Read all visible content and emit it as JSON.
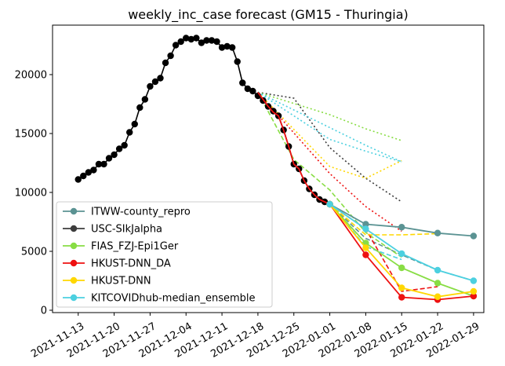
{
  "chart_data": {
    "type": "line",
    "title": "weekly_inc_case forecast (GM15 - Thuringia)",
    "xlabel": "",
    "ylabel": "",
    "x_start_date": "2021-11-08",
    "xlim": [
      0,
      84
    ],
    "ylim": [
      -200,
      24200
    ],
    "grid": false,
    "legend_position": "lower-left",
    "x_ticks": [
      {
        "x": 5,
        "label": "2021-11-13"
      },
      {
        "x": 12,
        "label": "2021-11-20"
      },
      {
        "x": 19,
        "label": "2021-11-27"
      },
      {
        "x": 26,
        "label": "2021-12-04"
      },
      {
        "x": 33,
        "label": "2021-12-11"
      },
      {
        "x": 40,
        "label": "2021-12-18"
      },
      {
        "x": 47,
        "label": "2021-12-25"
      },
      {
        "x": 54,
        "label": "2022-01-01"
      },
      {
        "x": 61,
        "label": "2022-01-08"
      },
      {
        "x": 68,
        "label": "2022-01-15"
      },
      {
        "x": 75,
        "label": "2022-01-22"
      },
      {
        "x": 82,
        "label": "2022-01-29"
      }
    ],
    "y_ticks": [
      {
        "y": 0,
        "label": "0"
      },
      {
        "y": 5000,
        "label": "5000"
      },
      {
        "y": 10000,
        "label": "10000"
      },
      {
        "y": 15000,
        "label": "15000"
      },
      {
        "y": 20000,
        "label": "20000"
      }
    ],
    "observed": {
      "name": "observed",
      "color": "#000000",
      "x": [
        5,
        6,
        7,
        8,
        9,
        10,
        11,
        12,
        13,
        14,
        15,
        16,
        17,
        18,
        19,
        20,
        21,
        22,
        23,
        24,
        25,
        26,
        27,
        28,
        29,
        30,
        31,
        32,
        33,
        34,
        35,
        36,
        37,
        38,
        39,
        40,
        41,
        42,
        43,
        44,
        45,
        46,
        47,
        48,
        49,
        50,
        51,
        52,
        53,
        54
      ],
      "y": [
        11100,
        11400,
        11700,
        11900,
        12400,
        12400,
        12900,
        13200,
        13700,
        14000,
        15100,
        15800,
        17200,
        17900,
        19000,
        19400,
        19700,
        21000,
        21600,
        22500,
        22800,
        23100,
        23000,
        23100,
        22700,
        22900,
        22900,
        22800,
        22300,
        22400,
        22300,
        21100,
        19300,
        18800,
        18600,
        18200,
        17800,
        17300,
        16900,
        16500,
        15300,
        13900,
        12400,
        12000,
        11000,
        10300,
        9800,
        9400,
        9200,
        9000
      ]
    },
    "series": [
      {
        "name": "ITWW-county_repro",
        "color": "#5b9393",
        "style": "solid",
        "x": [
          54,
          61,
          68,
          75,
          82
        ],
        "y": [
          9000,
          7300,
          7050,
          6550,
          6300
        ],
        "bands": [
          {
            "style": "dashed",
            "x": [
              54,
              61,
              68,
              75,
              82
            ],
            "y": [
              9000,
              6100,
              4700,
              3400,
              2500
            ]
          }
        ]
      },
      {
        "name": "USC-SIkJalpha",
        "color": "#3d3d3d",
        "style": "none",
        "x": [],
        "y": [],
        "bands": [
          {
            "style": "dotted",
            "x": [
              40,
              47,
              54,
              61,
              68
            ],
            "y": [
              18500,
              18000,
              13800,
              11200,
              9200
            ]
          }
        ]
      },
      {
        "name": "FIAS_FZJ-Epi1Ger",
        "color": "#88dd44",
        "style": "solid",
        "x": [
          54,
          61,
          68,
          75,
          82
        ],
        "y": [
          9000,
          5700,
          3600,
          2300,
          1200
        ],
        "bands": [
          {
            "style": "dotted",
            "x": [
              40,
              54,
              61,
              68
            ],
            "y": [
              18500,
              16600,
              15400,
              14400
            ]
          },
          {
            "style": "dashed",
            "x": [
              40,
              47,
              54,
              61,
              68
            ],
            "y": [
              18500,
              12800,
              10200,
              6600,
              4500
            ]
          }
        ]
      },
      {
        "name": "HKUST-DNN_DA",
        "color": "#ee1111",
        "style": "solid",
        "x": [
          40,
          42,
          43,
          44,
          45,
          46,
          47,
          48,
          49,
          50,
          51,
          52,
          53,
          54,
          61,
          68,
          75,
          82
        ],
        "y": [
          18500,
          17300,
          16800,
          16500,
          15300,
          13900,
          12400,
          12000,
          11000,
          10300,
          9800,
          9400,
          9200,
          9000,
          4700,
          1100,
          900,
          1200
        ],
        "bands": [
          {
            "style": "dotted",
            "x": [
              40,
              54,
              61,
              68
            ],
            "y": [
              18500,
              11600,
              8800,
              6700
            ]
          },
          {
            "style": "dashed",
            "x": [
              54,
              61,
              68,
              75
            ],
            "y": [
              9000,
              6900,
              1600,
              2000
            ]
          }
        ]
      },
      {
        "name": "HKUST-DNN",
        "color": "#ffd700",
        "style": "solid",
        "x": [
          54,
          61,
          68,
          75,
          82
        ],
        "y": [
          9000,
          5300,
          1900,
          1150,
          1600
        ],
        "bands": [
          {
            "style": "dotted",
            "x": [
              40,
              54,
              61,
              68
            ],
            "y": [
              18500,
              12200,
              11200,
              12700
            ]
          },
          {
            "style": "dashed",
            "x": [
              54,
              61,
              68,
              75
            ],
            "y": [
              9000,
              6400,
              6400,
              6500
            ]
          }
        ]
      },
      {
        "name": "KITCOVIDhub-median_ensemble",
        "color": "#4cd0e0",
        "style": "solid",
        "x": [
          54,
          61,
          68,
          75,
          82
        ],
        "y": [
          9000,
          6900,
          4800,
          3400,
          2500
        ],
        "bands": [
          {
            "style": "dotted",
            "x": [
              40,
              54,
              61,
              68
            ],
            "y": [
              18500,
              14500,
              13500,
              12600
            ]
          },
          {
            "style": "dotted",
            "x": [
              40,
              54,
              61,
              68
            ],
            "y": [
              18500,
              15500,
              14000,
              12600
            ]
          },
          {
            "style": "dashed",
            "x": [
              54,
              61,
              68
            ],
            "y": [
              9000,
              5400,
              4300
            ]
          }
        ]
      }
    ]
  }
}
